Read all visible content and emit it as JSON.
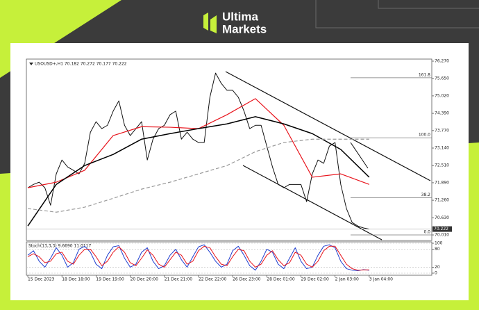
{
  "brand": {
    "line1": "Ultima",
    "line2": "Markets"
  },
  "chart_data": [
    {
      "type": "line",
      "title": "USOUSD+,H1 70.182 70.272 70.177 70.222",
      "x": [
        0,
        1,
        2,
        3,
        4,
        5,
        6,
        7,
        8,
        9,
        10,
        11,
        12,
        13,
        14,
        15,
        16,
        17,
        18,
        19,
        20,
        21,
        22,
        23,
        24,
        25,
        26,
        27,
        28,
        29,
        30,
        31,
        32,
        33,
        34,
        35,
        36,
        37,
        38,
        39,
        40,
        41,
        42,
        43,
        44,
        45,
        46,
        47,
        48,
        49,
        50,
        51,
        52,
        53,
        54,
        55,
        56,
        57,
        58,
        59,
        60
      ],
      "xlim": [
        -0.25,
        71
      ],
      "xticks": [
        {
          "value": 0,
          "label": "15 Dec 2023"
        },
        {
          "value": 6,
          "label": "18 Dec 18:00"
        },
        {
          "value": 12,
          "label": "19 Dec 19:00"
        },
        {
          "value": 18,
          "label": "20 Dec 20:00"
        },
        {
          "value": 24,
          "label": "21 Dec 21:00"
        },
        {
          "value": 30,
          "label": "22 Dec 22:00"
        },
        {
          "value": 36,
          "label": "26 Dec 23:00"
        },
        {
          "value": 42,
          "label": "28 Dec 01:00"
        },
        {
          "value": 48,
          "label": "29 Dec 02:00"
        },
        {
          "value": 54,
          "label": "2 Jan 03:00"
        },
        {
          "value": 60,
          "label": "3 Jan 04:00"
        }
      ],
      "ylim": [
        69.81,
        76.345
      ],
      "yticks": [
        {
          "value": 76.27,
          "label": "76.270"
        },
        {
          "value": 75.65,
          "label": "75.650"
        },
        {
          "value": 75.02,
          "label": "75.020"
        },
        {
          "value": 74.39,
          "label": "74.390"
        },
        {
          "value": 73.77,
          "label": "73.770"
        },
        {
          "value": 73.14,
          "label": "73.140"
        },
        {
          "value": 72.51,
          "label": "72.510"
        },
        {
          "value": 71.89,
          "label": "71.890"
        },
        {
          "value": 71.26,
          "label": "71.260"
        },
        {
          "value": 70.63,
          "label": "70.630"
        },
        {
          "value": 70.01,
          "label": "70.010"
        }
      ],
      "last_price": 70.222,
      "fib": {
        "range": [
          70.01,
          73.51
        ],
        "levels": [
          161.8,
          {
            "value": 100,
            "label": "100.0"
          },
          38.2,
          {
            "value": 0,
            "label": "0.0"
          }
        ]
      },
      "series": [
        {
          "color": "#111111",
          "width": 1,
          "values": [
            71.71,
            71.83,
            71.91,
            71.71,
            71.08,
            72.21,
            72.71,
            72.46,
            72.34,
            72.21,
            72.59,
            73.71,
            74.09,
            73.84,
            73.96,
            74.47,
            74.84,
            73.96,
            73.59,
            73.84,
            74.09,
            72.71,
            73.46,
            73.84,
            73.96,
            74.34,
            74.47,
            73.46,
            73.71,
            73.46,
            73.34,
            73.34,
            74.97,
            75.84,
            75.47,
            75.22,
            75.22,
            74.97,
            74.47,
            73.84,
            73.96,
            73.96,
            73.21,
            72.46,
            71.83,
            71.71,
            71.83,
            71.83,
            71.83,
            71.21,
            72.21,
            72.71,
            72.59,
            73.21,
            73.34,
            71.83,
            70.96,
            70.46,
            70.33,
            70.26,
            70.22
          ]
        },
        {
          "color": "#e8141c",
          "width": 1.2,
          "x": [
            0,
            5,
            10,
            15,
            20,
            25,
            30,
            35,
            40,
            45,
            50,
            55,
            60
          ],
          "values": [
            71.71,
            71.91,
            72.34,
            73.59,
            73.91,
            73.89,
            73.84,
            74.34,
            74.92,
            73.96,
            72.09,
            72.21,
            71.83
          ]
        },
        {
          "color": "#000000",
          "width": 1.5,
          "x": [
            0,
            5,
            10,
            15,
            20,
            25,
            30,
            35,
            40,
            45,
            50,
            55,
            60
          ],
          "values": [
            70.33,
            71.83,
            72.51,
            72.91,
            73.46,
            73.66,
            73.84,
            74.01,
            74.27,
            74.01,
            73.66,
            73.09,
            72.09
          ]
        },
        {
          "color": "#9a9a9a",
          "width": 1.2,
          "dash": true,
          "x": [
            0,
            5,
            10,
            15,
            20,
            25,
            30,
            35,
            40,
            45,
            50,
            55,
            60
          ],
          "values": [
            70.96,
            70.83,
            71.01,
            71.33,
            71.66,
            71.91,
            72.21,
            72.51,
            73.01,
            73.34,
            73.46,
            73.46,
            73.46
          ]
        }
      ]
    },
    {
      "type": "line",
      "title": "Stoch(13,3,3) 9.6690 11.0117",
      "x": [
        0,
        1,
        2,
        3,
        4,
        5,
        6,
        7,
        8,
        9,
        10,
        11,
        12,
        13,
        14,
        15,
        16,
        17,
        18,
        19,
        20,
        21,
        22,
        23,
        24,
        25,
        26,
        27,
        28,
        29,
        30,
        31,
        32,
        33,
        34,
        35,
        36,
        37,
        38,
        39,
        40,
        41,
        42,
        43,
        44,
        45,
        46,
        47,
        48,
        49,
        50,
        51,
        52,
        53,
        54,
        55,
        56,
        57,
        58,
        59,
        60
      ],
      "xlim": [
        -0.25,
        71
      ],
      "ylim": [
        0,
        100
      ],
      "yticks": [
        100,
        80,
        20,
        0
      ],
      "series": [
        {
          "color": "#1f3fd0",
          "width": 1,
          "values": [
            60,
            75,
            40,
            20,
            50,
            85,
            60,
            20,
            35,
            80,
            90,
            70,
            30,
            15,
            60,
            88,
            92,
            50,
            20,
            30,
            70,
            85,
            40,
            15,
            25,
            60,
            80,
            45,
            20,
            55,
            88,
            95,
            70,
            40,
            20,
            30,
            75,
            90,
            60,
            25,
            10,
            40,
            80,
            70,
            30,
            15,
            50,
            85,
            40,
            15,
            20,
            60,
            90,
            95,
            85,
            40,
            15,
            10,
            8,
            12,
            9.669
          ]
        },
        {
          "color": "#e8141c",
          "width": 1,
          "values": [
            55,
            65,
            55,
            35,
            40,
            65,
            70,
            40,
            30,
            60,
            80,
            80,
            55,
            25,
            40,
            70,
            88,
            70,
            35,
            25,
            50,
            78,
            60,
            30,
            20,
            45,
            70,
            60,
            30,
            40,
            75,
            90,
            85,
            55,
            30,
            25,
            55,
            80,
            75,
            40,
            20,
            30,
            60,
            75,
            45,
            25,
            35,
            70,
            60,
            30,
            20,
            40,
            75,
            90,
            90,
            60,
            30,
            15,
            10,
            11,
            11.0117
          ]
        }
      ]
    }
  ]
}
